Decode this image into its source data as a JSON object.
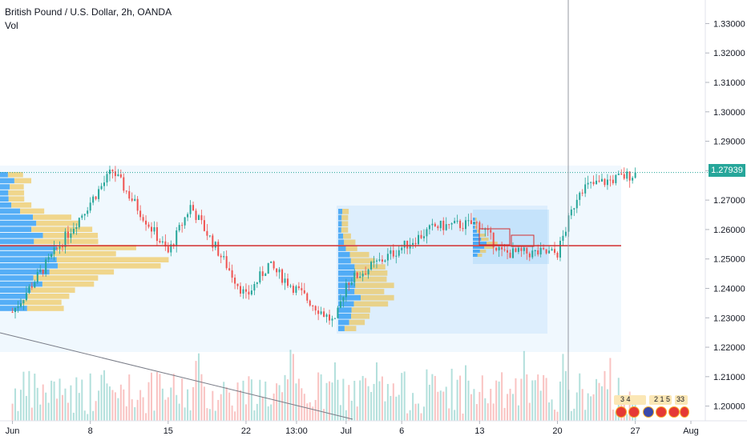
{
  "header": {
    "symbol_line": "British Pound / U.S. Dollar, 2h, OANDA",
    "indicator": "Vol"
  },
  "price_axis": {
    "labels": [
      "1.33000",
      "1.32000",
      "1.31000",
      "1.30000",
      "1.29000",
      "1.28000",
      "1.27000",
      "1.26000",
      "1.25000",
      "1.24000",
      "1.23000",
      "1.22000",
      "1.21000",
      "1.20000"
    ],
    "current_price": "1.27939"
  },
  "time_axis": {
    "labels": [
      "Jun",
      "8",
      "15",
      "22",
      "13:00",
      "Jul",
      "6",
      "13",
      "20",
      "27",
      "Aug"
    ]
  },
  "events": {
    "label_a": "3 4",
    "label_b": "2 1 5",
    "label_c": "33"
  },
  "colors": {
    "up": "#26a69a",
    "down": "#ef5350",
    "profile_blue": "#2196f3",
    "profile_yellow": "#f0c040",
    "poc": "#d32f2f",
    "range_fill": "#e3f2fd"
  },
  "chart_data": {
    "type": "candlestick",
    "ylim": [
      1.195,
      1.338
    ],
    "key_levels": {
      "poc": 1.2545,
      "current": 1.27939
    },
    "trend": [
      {
        "date": "Jun 1",
        "price": 1.232
      },
      {
        "date": "Jun 10",
        "price": 1.28
      },
      {
        "date": "Jun 15",
        "price": 1.252
      },
      {
        "date": "Jun 17",
        "price": 1.268
      },
      {
        "date": "Jun 22",
        "price": 1.237
      },
      {
        "date": "Jun 24",
        "price": 1.248
      },
      {
        "date": "Jun 30",
        "price": 1.228
      },
      {
        "date": "Jul 1",
        "price": 1.242
      },
      {
        "date": "Jul 9",
        "price": 1.261
      },
      {
        "date": "Jul 13",
        "price": 1.262
      },
      {
        "date": "Jul 15",
        "price": 1.252
      },
      {
        "date": "Jul 20",
        "price": 1.252
      },
      {
        "date": "Jul 22",
        "price": 1.274
      },
      {
        "date": "Jul 27",
        "price": 1.279
      }
    ]
  }
}
